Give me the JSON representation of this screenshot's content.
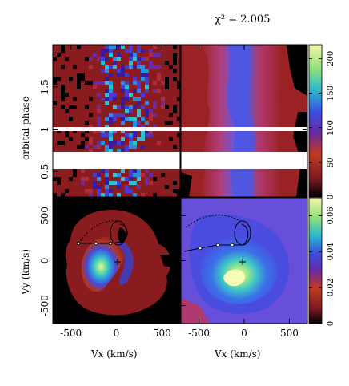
{
  "figure": {
    "stat_label": "χ² = 2.005",
    "colormap": [
      "#000000",
      "#1a0a8c",
      "#8a1c20",
      "#c43a1e",
      "#4a7cf0",
      "#2ec4c8",
      "#cfe04a",
      "#f2f59a"
    ]
  },
  "chart_data": [
    {
      "type": "heatmap",
      "panel": "observed trailed spectrum",
      "ylabel": "orbital phase",
      "y_ticks": [
        "0.5",
        "1",
        "1.5"
      ],
      "ylim": [
        0.2,
        2.0
      ],
      "gap_phases": [
        [
          0.58,
          0.7
        ]
      ],
      "marker_phase": 1.0
    },
    {
      "type": "heatmap",
      "panel": "reconstructed trailed spectrum",
      "colorbar_ticks": [
        "0",
        "50",
        "100",
        "150",
        "200"
      ],
      "colorbar_range": [
        0,
        220
      ]
    },
    {
      "type": "heatmap",
      "panel": "observed Doppler map",
      "xlabel": "Vx (km/s)",
      "ylabel": "Vy (km/s)",
      "x_ticks": [
        "-500",
        "0",
        "500"
      ],
      "y_ticks": [
        "-500",
        "0",
        "500"
      ],
      "xlim": [
        -700,
        700
      ],
      "ylim": [
        -700,
        700
      ]
    },
    {
      "type": "heatmap",
      "panel": "reconstructed Doppler map",
      "xlabel": "Vx (km/s)",
      "x_ticks": [
        "-500",
        "0",
        "500"
      ],
      "xlim": [
        -700,
        700
      ],
      "colorbar_ticks": [
        "0",
        "0.02",
        "0.04",
        "0.06"
      ],
      "colorbar_range": [
        0,
        0.07
      ]
    }
  ]
}
